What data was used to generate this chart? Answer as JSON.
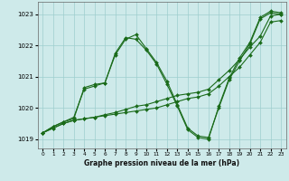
{
  "title": "Graphe pression niveau de la mer (hPa)",
  "xlim": [
    -0.5,
    23.5
  ],
  "ylim": [
    1018.7,
    1023.4
  ],
  "yticks": [
    1019,
    1020,
    1021,
    1022,
    1023
  ],
  "xticks": [
    0,
    1,
    2,
    3,
    4,
    5,
    6,
    7,
    8,
    9,
    10,
    11,
    12,
    13,
    14,
    15,
    16,
    17,
    18,
    19,
    20,
    21,
    22,
    23
  ],
  "background_color": "#ceeaea",
  "grid_color": "#9ecece",
  "line_color": "#1a6b1a",
  "markersize": 2.0,
  "linewidth": 0.8,
  "series": [
    [
      1019.2,
      1019.35,
      1019.5,
      1019.6,
      1019.65,
      1019.7,
      1019.75,
      1019.8,
      1019.85,
      1019.9,
      1019.95,
      1020.0,
      1020.1,
      1020.2,
      1020.3,
      1020.35,
      1020.45,
      1020.7,
      1021.0,
      1021.3,
      1021.7,
      1022.1,
      1022.75,
      1022.8
    ],
    [
      1019.2,
      1019.35,
      1019.5,
      1019.6,
      1019.65,
      1019.7,
      1019.78,
      1019.85,
      1019.95,
      1020.05,
      1020.1,
      1020.2,
      1020.3,
      1020.4,
      1020.45,
      1020.5,
      1020.6,
      1020.9,
      1021.2,
      1021.55,
      1021.95,
      1022.3,
      1022.95,
      1023.0
    ],
    [
      1019.2,
      1019.4,
      1019.55,
      1019.65,
      1020.65,
      1020.75,
      1020.8,
      1021.7,
      1022.2,
      1022.35,
      1021.9,
      1021.45,
      1020.85,
      1020.1,
      1019.35,
      1019.1,
      1019.05,
      1020.0,
      1020.9,
      1021.5,
      1022.05,
      1022.85,
      1023.05,
      1023.0
    ],
    [
      1019.2,
      1019.4,
      1019.55,
      1019.7,
      1020.6,
      1020.7,
      1020.8,
      1021.75,
      1022.25,
      1022.2,
      1021.85,
      1021.4,
      1020.75,
      1020.05,
      1019.3,
      1019.05,
      1019.0,
      1020.05,
      1020.95,
      1021.6,
      1022.1,
      1022.9,
      1023.1,
      1023.05
    ]
  ]
}
